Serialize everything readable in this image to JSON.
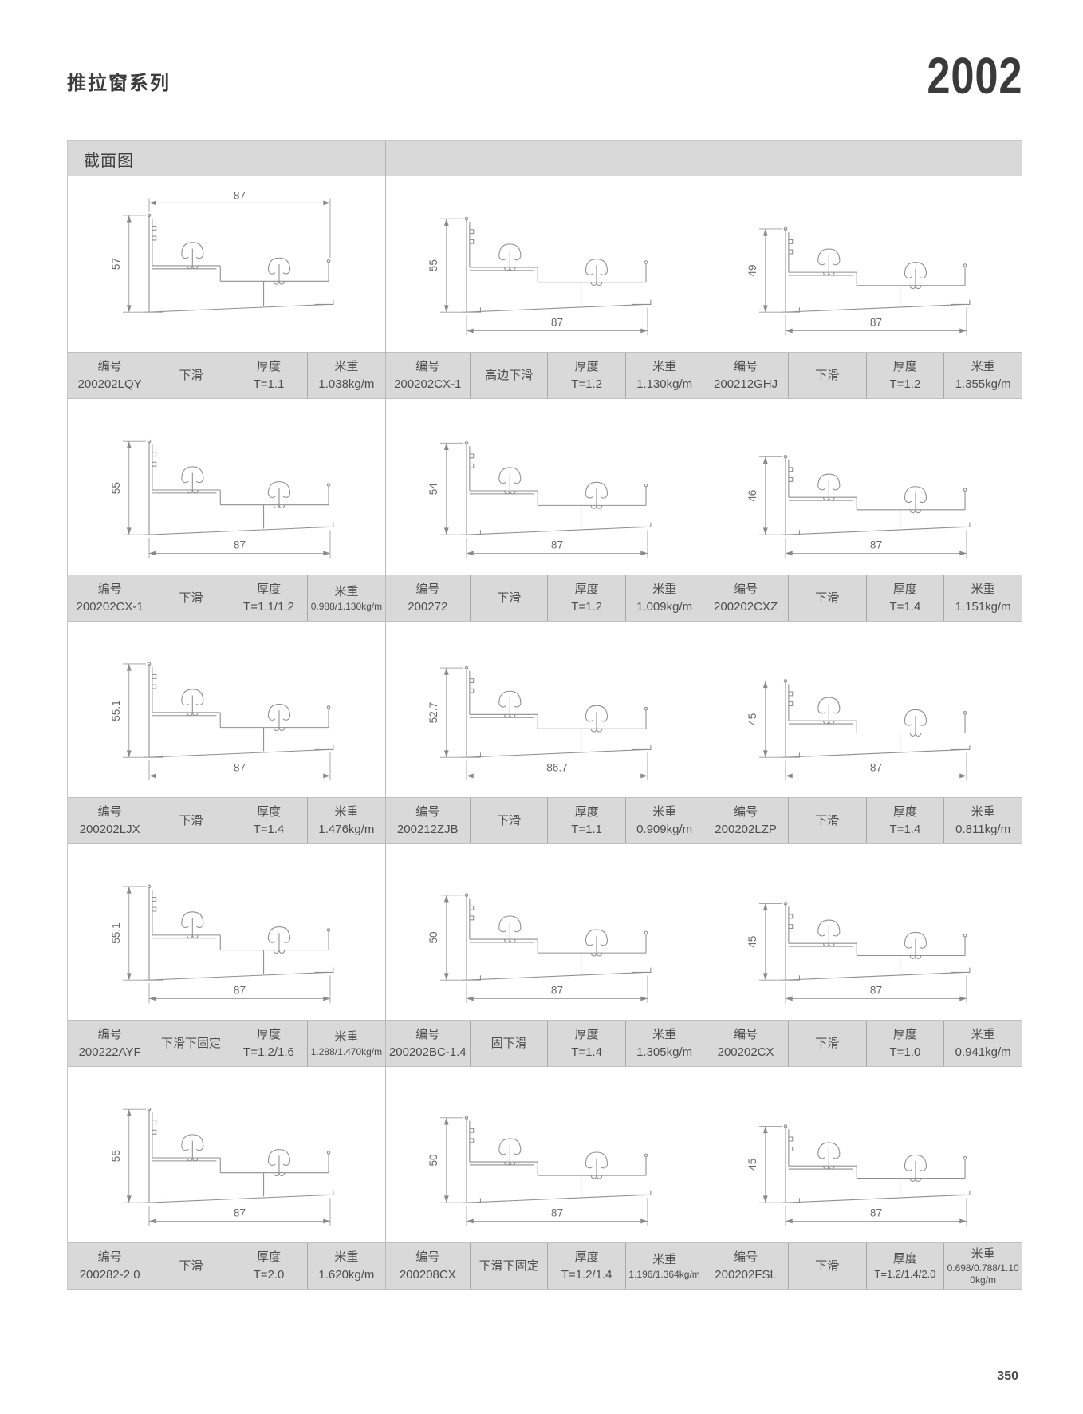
{
  "page": {
    "series_title": "推拉窗系列",
    "model": "2002",
    "section_header": "截面图",
    "page_number": "350"
  },
  "labels": {
    "code": "编号",
    "thickness": "厚度",
    "weight": "米重"
  },
  "colors": {
    "strip_gray": "#d9d9d9",
    "line_gray": "#a8a8a8",
    "text_dark": "#3c3c3c",
    "profile_stroke": "#8f8f8f"
  },
  "cells": [
    {
      "code": "200202LQY",
      "type": "下滑",
      "thickness": "T=1.1",
      "weight": "1.038kg/m",
      "dim_h": "57",
      "dim_w": "87",
      "width_pos": "top"
    },
    {
      "code": "200202CX-1",
      "type": "高边下滑",
      "thickness": "T=1.2",
      "weight": "1.130kg/m",
      "dim_h": "55",
      "dim_w": "87",
      "width_pos": "bottom"
    },
    {
      "code": "200212GHJ",
      "type": "下滑",
      "thickness": "T=1.2",
      "weight": "1.355kg/m",
      "dim_h": "49",
      "dim_w": "87",
      "width_pos": "bottom"
    },
    {
      "code": "200202CX-1",
      "type": "下滑",
      "thickness": "T=1.1/1.2",
      "weight": "0.988/1.130kg/m",
      "dim_h": "55",
      "dim_w": "87",
      "width_pos": "bottom"
    },
    {
      "code": "200272",
      "type": "下滑",
      "thickness": "T=1.2",
      "weight": "1.009kg/m",
      "dim_h": "54",
      "dim_w": "87",
      "width_pos": "bottom"
    },
    {
      "code": "200202CXZ",
      "type": "下滑",
      "thickness": "T=1.4",
      "weight": "1.151kg/m",
      "dim_h": "46",
      "dim_w": "87",
      "width_pos": "bottom"
    },
    {
      "code": "200202LJX",
      "type": "下滑",
      "thickness": "T=1.4",
      "weight": "1.476kg/m",
      "dim_h": "55.1",
      "dim_w": "87",
      "width_pos": "bottom"
    },
    {
      "code": "200212ZJB",
      "type": "下滑",
      "thickness": "T=1.1",
      "weight": "0.909kg/m",
      "dim_h": "52.7",
      "dim_w": "86.7",
      "width_pos": "bottom"
    },
    {
      "code": "200202LZP",
      "type": "下滑",
      "thickness": "T=1.4",
      "weight": "0.811kg/m",
      "dim_h": "45",
      "dim_w": "87",
      "width_pos": "bottom"
    },
    {
      "code": "200222AYF",
      "type": "下滑下固定",
      "thickness": "T=1.2/1.6",
      "weight": "1.288/1.470kg/m",
      "dim_h": "55.1",
      "dim_w": "87",
      "width_pos": "bottom"
    },
    {
      "code": "200202BC-1.4",
      "type": "固下滑",
      "thickness": "T=1.4",
      "weight": "1.305kg/m",
      "dim_h": "50",
      "dim_w": "87",
      "width_pos": "bottom"
    },
    {
      "code": "200202CX",
      "type": "下滑",
      "thickness": "T=1.0",
      "weight": "0.941kg/m",
      "dim_h": "45",
      "dim_w": "87",
      "width_pos": "bottom"
    },
    {
      "code": "200282-2.0",
      "type": "下滑",
      "thickness": "T=2.0",
      "weight": "1.620kg/m",
      "dim_h": "55",
      "dim_w": "87",
      "width_pos": "bottom"
    },
    {
      "code": "200208CX",
      "type": "下滑下固定",
      "thickness": "T=1.2/1.4",
      "weight": "1.196/1.364kg/m",
      "dim_h": "50",
      "dim_w": "87",
      "width_pos": "bottom"
    },
    {
      "code": "200202FSL",
      "type": "下滑",
      "thickness": "T=1.2/1.4/2.0",
      "weight": "0.698/0.788/1.100kg/m",
      "dim_h": "45",
      "dim_w": "87",
      "width_pos": "bottom"
    }
  ]
}
